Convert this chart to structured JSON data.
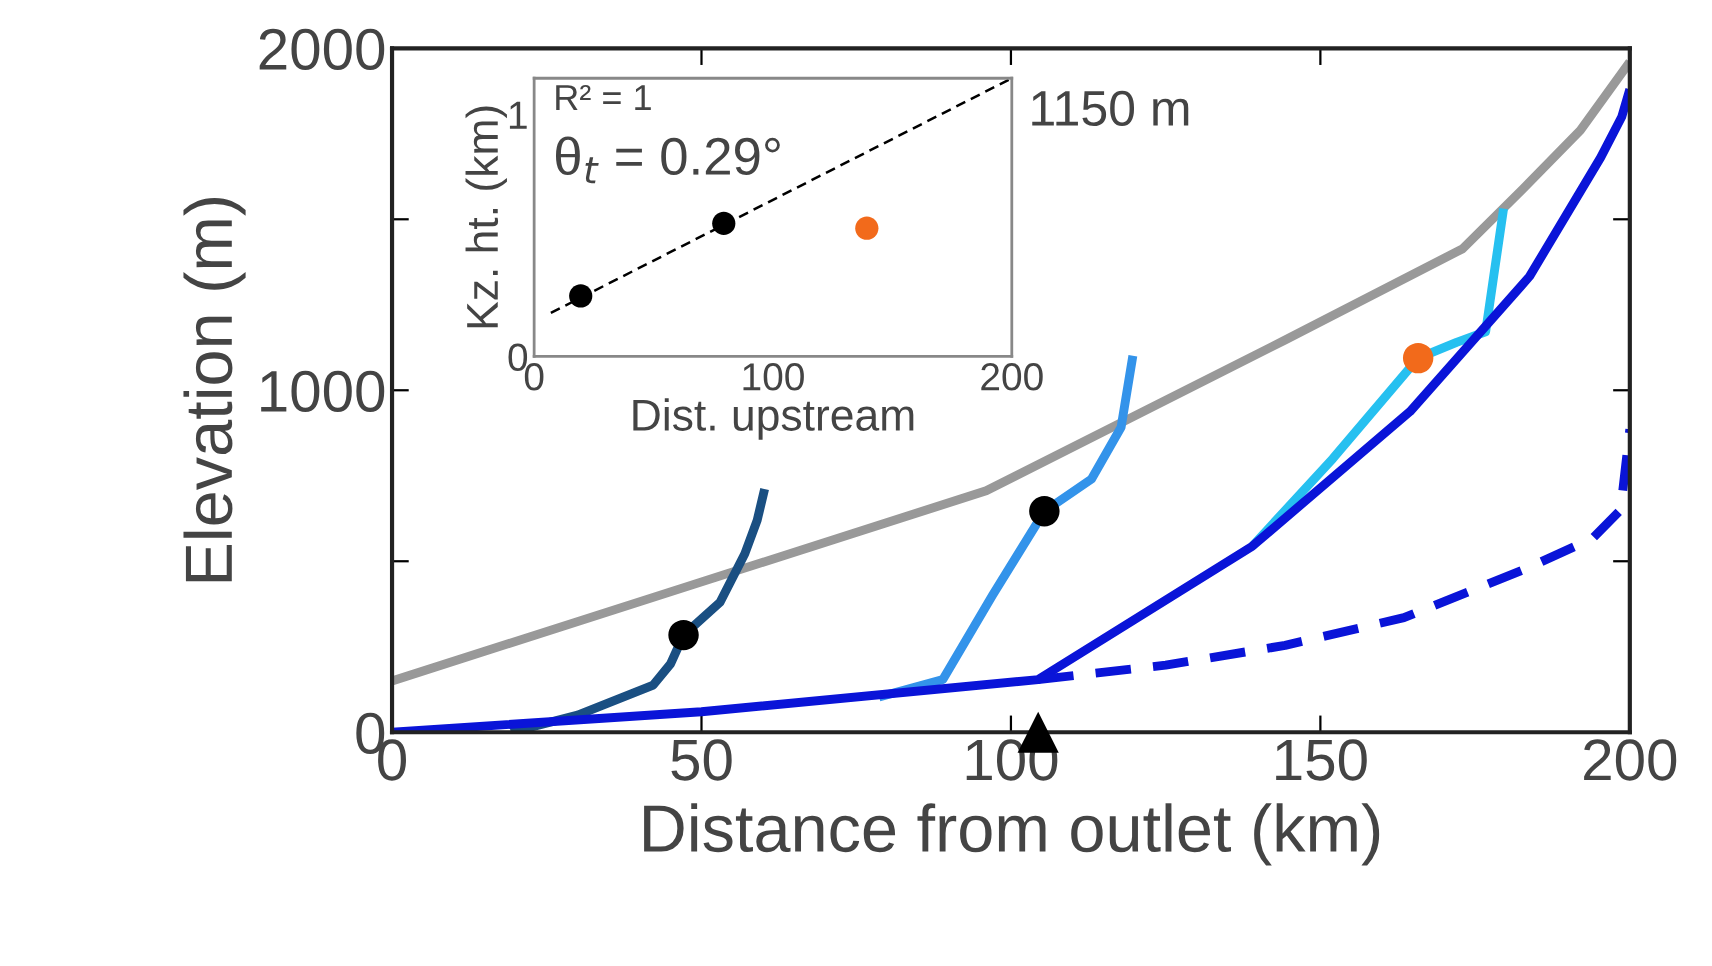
{
  "chart_data": [
    {
      "type": "line",
      "xlabel": "Distance from outlet (km)",
      "ylabel": "Elevation (m)",
      "xlim": [
        0,
        200
      ],
      "ylim": [
        0,
        2000
      ],
      "xticks": [
        0,
        50,
        100,
        150,
        200
      ],
      "yticks": [
        0,
        {
          "value": 500,
          "label": null
        },
        1000,
        {
          "value": 1500,
          "label": null
        },
        2000
      ],
      "grid": false,
      "legend": false,
      "series": [
        {
          "color": "#999999",
          "x": [
            0,
            48,
            96,
            144.3,
            173,
            182.7,
            192,
            200
          ],
          "values": [
            150,
            428,
            706,
            1147,
            1414,
            1588,
            1760,
            1960
          ]
        },
        {
          "color": "#1a4f82",
          "x": [
            19.2,
            30,
            42.2,
            45,
            47.1,
            53,
            57,
            59,
            60.2
          ],
          "values": [
            0,
            50,
            138,
            200,
            284,
            380,
            522,
            620,
            711
          ]
        },
        {
          "color": "#3393ea",
          "x": [
            78.7,
            89,
            97,
            105.4,
            113,
            117.8,
            119.7
          ],
          "values": [
            103,
            154,
            400,
            646,
            740,
            892,
            1101
          ]
        },
        {
          "color": "#26c0f0",
          "x": [
            139,
            152,
            165.8,
            172,
            176.7,
            178,
            179.6
          ],
          "values": [
            544,
            800,
            1094,
            1140,
            1171,
            1333,
            1531
          ]
        },
        {
          "color": "#0a14d8",
          "x": [
            0,
            50,
            104.4,
            139,
            164.5,
            183.8,
            195.3,
            198.7,
            200
          ],
          "values": [
            0,
            60,
            154,
            544,
            938,
            1333,
            1681,
            1800,
            1880
          ]
        },
        {
          "line_style": "dashed",
          "color": "#0a14d8",
          "x": [
            104.4,
            125,
            144.3,
            163.5,
            182.7,
            194,
            198.5,
            200
          ],
          "values": [
            154,
            196,
            254,
            335,
            474,
            567,
            650,
            886
          ]
        },
        {
          "type": "scatter",
          "marker": "circle",
          "color": "#000000",
          "x": [
            47.1,
            105.4
          ],
          "values": [
            284,
            646
          ]
        },
        {
          "type": "scatter",
          "marker": "circle",
          "color": "#f26a1b",
          "x": [
            165.8
          ],
          "values": [
            1094
          ]
        },
        {
          "type": "scatter",
          "marker": "triangle",
          "color": "#000000",
          "x": [
            104.4
          ],
          "values": [
            0
          ]
        }
      ]
    },
    {
      "type": "scatter",
      "xlabel": "Dist. upstream",
      "ylabel": "Kz. ht. (km)",
      "xlim": [
        0,
        200
      ],
      "ylim": [
        0,
        1.15
      ],
      "xticks": [
        0,
        100,
        200
      ],
      "yticks": [
        0,
        1
      ],
      "grid": false,
      "legend": false,
      "annotations": [
        "R² = 1",
        "θ$_{t}$ = 0.29°",
        {
          "text": "1150 m",
          "x": 200,
          "y": 1.15
        }
      ],
      "series": [
        {
          "type": "line",
          "line_style": "dashed",
          "color": "#000000",
          "x": [
            7,
            200
          ],
          "values": [
            0.18,
            1.15
          ]
        },
        {
          "marker": "circle",
          "color": "#000000",
          "x": [
            19.5,
            79.4
          ],
          "values": [
            0.25,
            0.55
          ]
        },
        {
          "marker": "circle",
          "color": "#f26a1b",
          "x": [
            139.3
          ],
          "values": [
            0.53
          ]
        }
      ]
    }
  ]
}
